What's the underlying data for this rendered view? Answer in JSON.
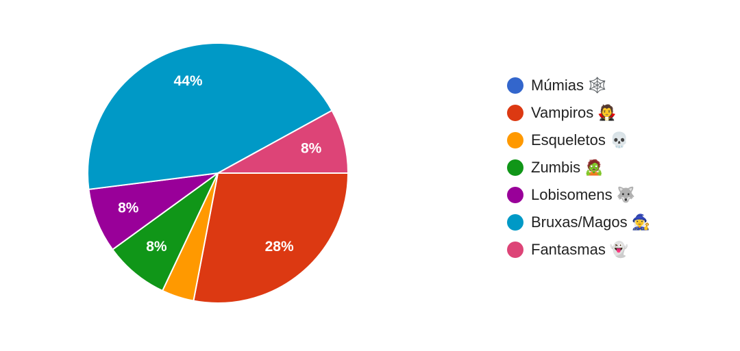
{
  "chart_data": {
    "type": "pie",
    "categories": [
      "Múmias 🕸️",
      "Vampiros 🧛",
      "Esqueletos 💀",
      "Zumbis 🧟",
      "Lobisomens 🐺",
      "Bruxas/Magos 🧙‍♀️",
      "Fantasmas 👻"
    ],
    "values": [
      0,
      28,
      4,
      8,
      8,
      44,
      8
    ],
    "value_labels": [
      null,
      "28%",
      null,
      "8%",
      "8%",
      "44%",
      "8%"
    ],
    "colors": [
      "#3366cc",
      "#dc3912",
      "#ff9900",
      "#109618",
      "#990099",
      "#0099c6",
      "#dd4477"
    ],
    "legend": "right"
  }
}
